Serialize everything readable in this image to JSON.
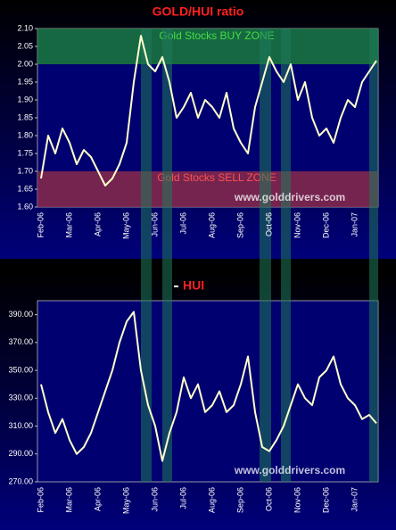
{
  "chart_data": [
    {
      "type": "line",
      "title": "GOLD/HUI ratio",
      "categories": [
        "Feb-06",
        null,
        null,
        null,
        "Mar-06",
        null,
        null,
        null,
        "Apr-06",
        null,
        null,
        null,
        "May-06",
        null,
        null,
        null,
        "Jun-06",
        null,
        null,
        null,
        "Jul-06",
        null,
        null,
        null,
        "Aug-06",
        null,
        null,
        null,
        "Sep-06",
        null,
        null,
        null,
        "Oct-06",
        null,
        null,
        null,
        "Nov-06",
        null,
        null,
        null,
        "Dec-06",
        null,
        null,
        null,
        "Jan-07",
        null,
        null,
        null
      ],
      "series": [
        {
          "name": "GOLD/HUI",
          "color": "#ffffcc",
          "values": [
            1.68,
            1.8,
            1.75,
            1.82,
            1.78,
            1.72,
            1.76,
            1.74,
            1.7,
            1.66,
            1.68,
            1.72,
            1.78,
            1.95,
            2.08,
            2.0,
            1.98,
            2.02,
            1.95,
            1.85,
            1.88,
            1.92,
            1.85,
            1.9,
            1.88,
            1.85,
            1.92,
            1.82,
            1.78,
            1.75,
            1.88,
            1.95,
            2.02,
            1.98,
            1.95,
            2.0,
            1.9,
            1.95,
            1.85,
            1.8,
            1.82,
            1.78,
            1.85,
            1.9,
            1.88,
            1.95,
            1.98,
            2.01
          ]
        }
      ],
      "ylim": [
        1.6,
        2.1
      ],
      "yticks": [
        {
          "value": 1.6,
          "label": "1.60"
        },
        {
          "value": 1.65,
          "label": "1.65"
        },
        {
          "value": 1.7,
          "label": "1.70"
        },
        {
          "value": 1.75,
          "label": "1.75"
        },
        {
          "value": 1.8,
          "label": "1.80"
        },
        {
          "value": 1.85,
          "label": "1.85"
        },
        {
          "value": 1.9,
          "label": "1.90"
        },
        {
          "value": 1.95,
          "label": "1.95"
        },
        {
          "value": 2.0,
          "label": "2.00"
        },
        {
          "value": 2.05,
          "label": "2.05"
        },
        {
          "value": 2.1,
          "label": "2.10"
        }
      ],
      "zones": [
        {
          "label": "Gold Stocks BUY ZONE",
          "range": [
            2.0,
            2.1
          ],
          "color": "#1a7a3a",
          "text_color": "#44dd44"
        },
        {
          "label": "Gold Stocks SELL ZONE",
          "range": [
            1.6,
            1.7
          ],
          "color": "#8a2a4a",
          "text_color": "#ff5050"
        }
      ],
      "watermark": "www.golddrivers.com"
    },
    {
      "type": "line",
      "categories": [
        "Feb-06",
        null,
        null,
        null,
        "Mar-06",
        null,
        null,
        null,
        "Apr-06",
        null,
        null,
        null,
        "May-06",
        null,
        null,
        null,
        "Jun-06",
        null,
        null,
        null,
        "Jul-06",
        null,
        null,
        null,
        "Aug-06",
        null,
        null,
        null,
        "Sep-06",
        null,
        null,
        null,
        "Oct-06",
        null,
        null,
        null,
        "Nov-06",
        null,
        null,
        null,
        "Dec-06",
        null,
        null,
        null,
        "Jan-07",
        null,
        null,
        null
      ],
      "series": [
        {
          "name": "HUI",
          "color": "#ffffcc",
          "values": [
            340,
            320,
            305,
            315,
            300,
            290,
            295,
            305,
            320,
            335,
            350,
            370,
            385,
            392,
            350,
            325,
            310,
            285,
            305,
            320,
            345,
            330,
            340,
            320,
            325,
            335,
            320,
            325,
            340,
            360,
            320,
            295,
            292,
            300,
            310,
            325,
            340,
            330,
            325,
            345,
            350,
            360,
            340,
            330,
            325,
            315,
            318,
            312
          ]
        }
      ],
      "ylim": [
        270,
        400
      ],
      "yticks": [
        {
          "value": 270,
          "label": "270.00"
        },
        {
          "value": 290,
          "label": "290.00"
        },
        {
          "value": 310,
          "label": "310.00"
        },
        {
          "value": 330,
          "label": "330.00"
        },
        {
          "value": 350,
          "label": "350.00"
        },
        {
          "value": 370,
          "label": "370.00"
        },
        {
          "value": 390,
          "label": "390.00"
        }
      ],
      "watermark": "www.golddrivers.com"
    }
  ]
}
